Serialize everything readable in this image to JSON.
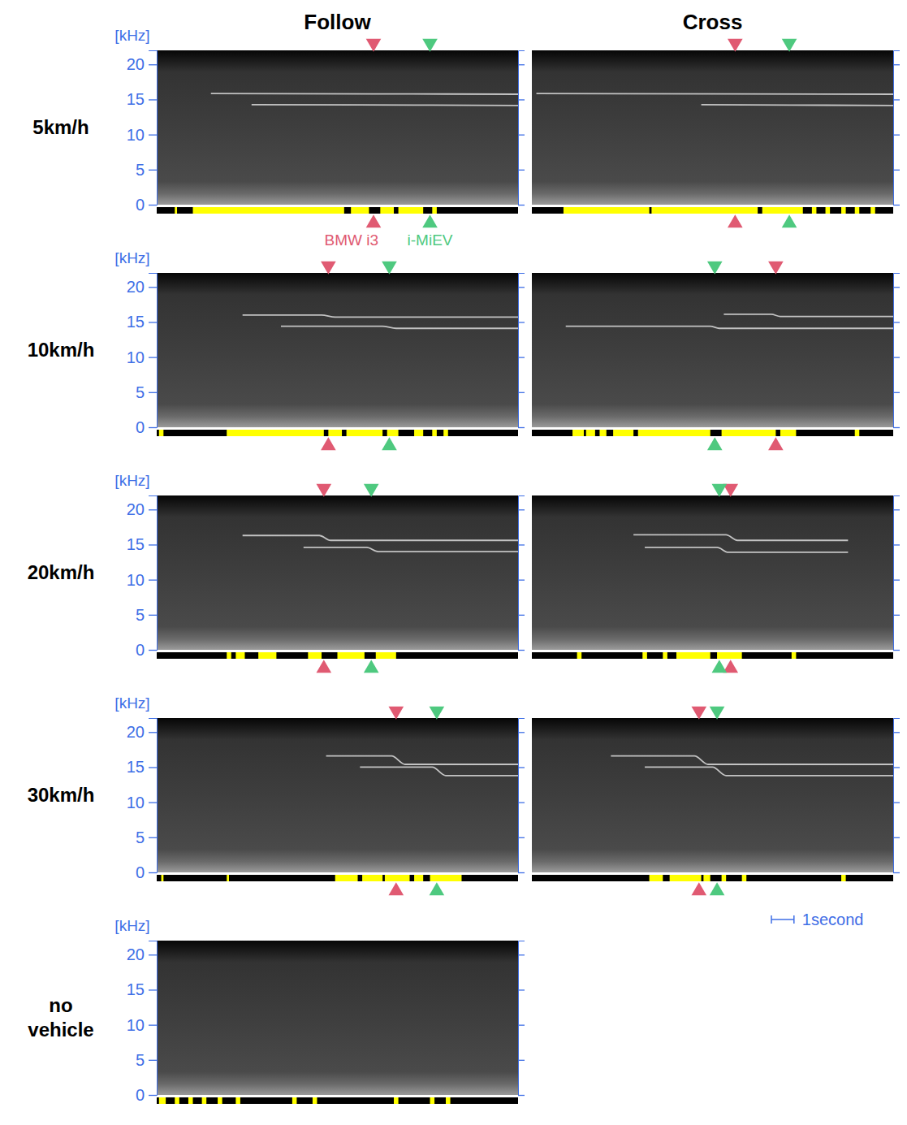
{
  "columns": [
    "Follow",
    "Cross"
  ],
  "rows": [
    "5km/h",
    "10km/h",
    "20km/h",
    "30km/h",
    "no vehicle"
  ],
  "y_label": "[kHz]",
  "scale_bar": {
    "value": 1,
    "label": "1second"
  },
  "chart_data": [
    {
      "type": "spectrogram",
      "row": "5km/h",
      "column": "Follow",
      "xlim": [
        0,
        16
      ],
      "ylim": [
        0,
        22
      ],
      "yticks": [
        0,
        5,
        10,
        15,
        20
      ],
      "tick_labels": "y",
      "legend": "below",
      "series": [
        {
          "name": "BMW i3",
          "color": "#e05a72",
          "pass_time": 9.6,
          "x": [
            2.4,
            9.6,
            16
          ],
          "values": [
            15.85,
            15.8,
            15.75
          ]
        },
        {
          "name": "i-MiEV",
          "color": "#4ec97f",
          "pass_time": 12.1,
          "x": [
            4.2,
            12.1,
            16
          ],
          "values": [
            14.25,
            14.2,
            14.15
          ]
        }
      ],
      "detections": [
        [
          0.8,
          0.9
        ],
        [
          1.6,
          8.3
        ],
        [
          8.6,
          9.4
        ],
        [
          9.9,
          10.5
        ],
        [
          10.7,
          11.8
        ],
        [
          12.2,
          12.4
        ]
      ]
    },
    {
      "type": "spectrogram",
      "row": "5km/h",
      "column": "Cross",
      "xlim": [
        0,
        16
      ],
      "ylim": [
        0,
        22
      ],
      "yticks": [
        0,
        5,
        10,
        15,
        20
      ],
      "tick_labels": false,
      "series": [
        {
          "name": "BMW i3",
          "color": "#e05a72",
          "pass_time": 9.0,
          "x": [
            0.2,
            9.0,
            16
          ],
          "values": [
            15.85,
            15.8,
            15.75
          ]
        },
        {
          "name": "i-MiEV",
          "color": "#4ec97f",
          "pass_time": 11.4,
          "x": [
            7.5,
            11.4,
            16
          ],
          "values": [
            14.25,
            14.2,
            14.15
          ]
        }
      ],
      "detections": [
        [
          1.4,
          5.2
        ],
        [
          5.3,
          10.0
        ],
        [
          10.2,
          12.0
        ],
        [
          12.4,
          12.6
        ],
        [
          13.0,
          13.2
        ],
        [
          13.7,
          13.9
        ],
        [
          14.3,
          14.5
        ],
        [
          15.0,
          15.2
        ]
      ]
    },
    {
      "type": "spectrogram",
      "row": "10km/h",
      "column": "Follow",
      "xlim": [
        0,
        16
      ],
      "ylim": [
        0,
        22
      ],
      "yticks": [
        0,
        5,
        10,
        15,
        20
      ],
      "tick_labels": "y",
      "series": [
        {
          "name": "BMW i3",
          "color": "#e05a72",
          "pass_time": 7.6,
          "x": [
            3.8,
            7.3,
            7.9,
            16
          ],
          "values": [
            16.0,
            16.0,
            15.7,
            15.7
          ]
        },
        {
          "name": "i-MiEV",
          "color": "#4ec97f",
          "pass_time": 10.3,
          "x": [
            5.5,
            10.0,
            10.6,
            16
          ],
          "values": [
            14.4,
            14.4,
            14.1,
            14.1
          ]
        }
      ],
      "detections": [
        [
          0.1,
          0.3
        ],
        [
          3.1,
          7.4
        ],
        [
          7.6,
          8.2
        ],
        [
          8.4,
          10.0
        ],
        [
          10.2,
          10.7
        ],
        [
          11.4,
          11.8
        ],
        [
          12.2,
          12.4
        ],
        [
          12.7,
          12.9
        ]
      ]
    },
    {
      "type": "spectrogram",
      "row": "10km/h",
      "column": "Cross",
      "xlim": [
        0,
        16
      ],
      "ylim": [
        0,
        22
      ],
      "yticks": [
        0,
        5,
        10,
        15,
        20
      ],
      "tick_labels": false,
      "series": [
        {
          "name": "BMW i3",
          "color": "#e05a72",
          "pass_time": 10.8,
          "x": [
            8.5,
            10.6,
            11.0,
            16
          ],
          "values": [
            16.1,
            16.1,
            15.8,
            15.8
          ]
        },
        {
          "name": "i-MiEV",
          "color": "#4ec97f",
          "pass_time": 8.1,
          "x": [
            1.5,
            7.9,
            8.3,
            16
          ],
          "values": [
            14.4,
            14.4,
            14.1,
            14.1
          ]
        }
      ],
      "detections": [
        [
          1.8,
          2.3
        ],
        [
          2.4,
          2.8
        ],
        [
          3.0,
          3.3
        ],
        [
          3.6,
          4.5
        ],
        [
          4.7,
          7.9
        ],
        [
          8.4,
          10.8
        ],
        [
          11.0,
          11.7
        ],
        [
          14.3,
          14.5
        ]
      ]
    },
    {
      "type": "spectrogram",
      "row": "20km/h",
      "column": "Follow",
      "xlim": [
        0,
        16
      ],
      "ylim": [
        0,
        22
      ],
      "yticks": [
        0,
        5,
        10,
        15,
        20
      ],
      "tick_labels": "y",
      "series": [
        {
          "name": "BMW i3",
          "color": "#e05a72",
          "pass_time": 7.4,
          "x": [
            3.8,
            7.2,
            7.7,
            16
          ],
          "values": [
            16.3,
            16.3,
            15.6,
            15.6
          ]
        },
        {
          "name": "i-MiEV",
          "color": "#4ec97f",
          "pass_time": 9.5,
          "x": [
            6.5,
            9.3,
            9.8,
            16
          ],
          "values": [
            14.6,
            14.6,
            14.0,
            14.0
          ]
        }
      ],
      "detections": [
        [
          3.1,
          3.3
        ],
        [
          3.5,
          3.9
        ],
        [
          4.5,
          5.3
        ],
        [
          6.7,
          7.3
        ],
        [
          8.0,
          9.2
        ],
        [
          9.7,
          10.6
        ]
      ]
    },
    {
      "type": "spectrogram",
      "row": "20km/h",
      "column": "Cross",
      "xlim": [
        0,
        16
      ],
      "ylim": [
        0,
        22
      ],
      "yticks": [
        0,
        5,
        10,
        15,
        20
      ],
      "tick_labels": false,
      "series": [
        {
          "name": "BMW i3",
          "color": "#e05a72",
          "pass_time": 8.8,
          "x": [
            4.5,
            8.6,
            9.1,
            14.0
          ],
          "values": [
            16.4,
            16.4,
            15.6,
            15.6
          ]
        },
        {
          "name": "i-MiEV",
          "color": "#4ec97f",
          "pass_time": 8.3,
          "x": [
            5.0,
            8.2,
            8.7,
            14.0
          ],
          "values": [
            14.6,
            14.6,
            13.9,
            13.9
          ]
        }
      ],
      "detections": [
        [
          2.0,
          2.2
        ],
        [
          4.9,
          5.1
        ],
        [
          5.8,
          6.0
        ],
        [
          6.4,
          7.9
        ],
        [
          8.2,
          9.3
        ],
        [
          11.5,
          11.7
        ]
      ]
    },
    {
      "type": "spectrogram",
      "row": "30km/h",
      "column": "Follow",
      "xlim": [
        0,
        16
      ],
      "ylim": [
        0,
        22
      ],
      "yticks": [
        0,
        5,
        10,
        15,
        20
      ],
      "tick_labels": "y",
      "series": [
        {
          "name": "BMW i3",
          "color": "#e05a72",
          "pass_time": 10.6,
          "x": [
            7.5,
            10.4,
            11.0,
            16
          ],
          "values": [
            16.6,
            16.6,
            15.4,
            15.4
          ]
        },
        {
          "name": "i-MiEV",
          "color": "#4ec97f",
          "pass_time": 12.4,
          "x": [
            9.0,
            12.2,
            12.8,
            16
          ],
          "values": [
            15.0,
            15.0,
            13.8,
            13.8
          ]
        }
      ],
      "detections": [
        [
          0.2,
          0.3
        ],
        [
          3.1,
          3.2
        ],
        [
          7.9,
          8.9
        ],
        [
          9.1,
          10.0
        ],
        [
          10.1,
          11.2
        ],
        [
          11.4,
          11.8
        ],
        [
          12.1,
          13.5
        ]
      ]
    },
    {
      "type": "spectrogram",
      "row": "30km/h",
      "column": "Cross",
      "xlim": [
        0,
        16
      ],
      "ylim": [
        0,
        22
      ],
      "yticks": [
        0,
        5,
        10,
        15,
        20
      ],
      "tick_labels": false,
      "series": [
        {
          "name": "BMW i3",
          "color": "#e05a72",
          "pass_time": 7.4,
          "x": [
            3.5,
            7.2,
            7.8,
            16
          ],
          "values": [
            16.6,
            16.6,
            15.4,
            15.4
          ]
        },
        {
          "name": "i-MiEV",
          "color": "#4ec97f",
          "pass_time": 8.2,
          "x": [
            5.0,
            8.0,
            8.6,
            16
          ],
          "values": [
            15.0,
            15.0,
            13.8,
            13.8
          ]
        }
      ],
      "detections": [
        [
          5.2,
          5.8
        ],
        [
          6.1,
          7.5
        ],
        [
          7.6,
          7.9
        ],
        [
          8.4,
          8.6
        ],
        [
          9.3,
          9.5
        ],
        [
          13.7,
          13.9
        ]
      ]
    },
    {
      "type": "spectrogram",
      "row": "no vehicle",
      "column": "Follow",
      "xlim": [
        0,
        16
      ],
      "ylim": [
        0,
        22
      ],
      "yticks": [
        0,
        5,
        10,
        15,
        20
      ],
      "tick_labels": "y",
      "series": [],
      "detections": [
        [
          0.1,
          0.4
        ],
        [
          0.8,
          1.0
        ],
        [
          1.4,
          1.6
        ],
        [
          2.0,
          2.2
        ],
        [
          2.7,
          2.9
        ],
        [
          3.5,
          3.7
        ],
        [
          6.0,
          6.2
        ],
        [
          6.9,
          7.1
        ],
        [
          10.5,
          10.7
        ],
        [
          12.1,
          12.3
        ],
        [
          12.8,
          13.0
        ]
      ]
    }
  ]
}
